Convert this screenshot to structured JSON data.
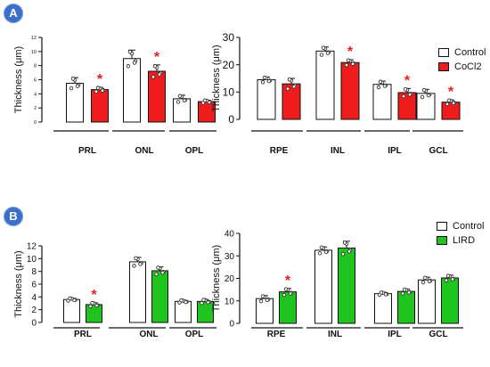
{
  "panels": [
    {
      "label": "A"
    },
    {
      "label": "B"
    }
  ],
  "colors": {
    "control": "#ffffff",
    "cocl2": "#ee1c1c",
    "lird": "#1fc41f",
    "star": "#ee1c1c",
    "axis": "#111111",
    "badge": "#3b6fc9"
  },
  "legends": [
    {
      "items": [
        {
          "name": "Control",
          "color": "#ffffff"
        },
        {
          "name": "CoCl2",
          "color": "#ee1c1c"
        }
      ]
    },
    {
      "items": [
        {
          "name": "Control",
          "color": "#ffffff"
        },
        {
          "name": "LIRD",
          "color": "#1fc41f"
        }
      ]
    }
  ],
  "chart_data": [
    {
      "type": "bar",
      "panel": "A",
      "ylabel": "Thickness (μm)",
      "ylim": [
        0,
        12
      ],
      "yticks": [
        "0",
        "2",
        "4",
        "6",
        "8",
        "10",
        "12"
      ],
      "categories": [
        "PRL",
        "ONL",
        "OPL"
      ],
      "series": [
        {
          "name": "Control",
          "values": [
            5.5,
            9.0,
            3.3
          ],
          "errors": [
            0.8,
            1.2,
            0.5
          ]
        },
        {
          "name": "CoCl2",
          "values": [
            4.6,
            7.2,
            2.9
          ],
          "errors": [
            0.3,
            0.9,
            0.2
          ]
        }
      ],
      "significant": [
        true,
        true,
        false
      ]
    },
    {
      "type": "bar",
      "panel": "A",
      "ylabel": "Thickness (μm)",
      "ylim": [
        0,
        30
      ],
      "yticks": [
        "0",
        "10",
        "20",
        "30"
      ],
      "categories": [
        "RPE",
        "INL",
        "IPL",
        "GCL"
      ],
      "series": [
        {
          "name": "Control",
          "values": [
            14.5,
            25.0,
            12.8,
            9.5
          ],
          "errors": [
            1.0,
            1.5,
            1.2,
            1.5
          ]
        },
        {
          "name": "CoCl2",
          "values": [
            13.0,
            20.8,
            9.8,
            6.3
          ],
          "errors": [
            2.0,
            1.0,
            1.5,
            0.8
          ]
        }
      ],
      "significant": [
        false,
        true,
        true,
        true
      ]
    },
    {
      "type": "bar",
      "panel": "B",
      "ylabel": "Thickness (μm)",
      "ylim": [
        0,
        12
      ],
      "yticks": [
        "0",
        "2",
        "4",
        "6",
        "8",
        "10",
        "12"
      ],
      "categories": [
        "PRL",
        "ONL",
        "OPL"
      ],
      "series": [
        {
          "name": "Control",
          "values": [
            3.6,
            9.5,
            3.3
          ],
          "errors": [
            0.2,
            0.7,
            0.2
          ]
        },
        {
          "name": "LIRD",
          "values": [
            2.8,
            8.1,
            3.3
          ],
          "errors": [
            0.3,
            0.6,
            0.3
          ]
        }
      ],
      "significant": [
        true,
        false,
        false
      ]
    },
    {
      "type": "bar",
      "panel": "B",
      "ylabel": "Thickness (μm)",
      "ylim": [
        0,
        40
      ],
      "yticks": [
        "0",
        "10",
        "20",
        "30",
        "40"
      ],
      "categories": [
        "RPE",
        "INL",
        "IPL",
        "GCL"
      ],
      "series": [
        {
          "name": "Control",
          "values": [
            11.0,
            32.5,
            13.2,
            19.3
          ],
          "errors": [
            1.3,
            1.5,
            0.6,
            1.2
          ]
        },
        {
          "name": "LIRD",
          "values": [
            14.0,
            33.5,
            14.2,
            20.2
          ],
          "errors": [
            1.5,
            3.0,
            1.0,
            1.2
          ]
        }
      ],
      "significant": [
        true,
        false,
        false,
        false
      ]
    }
  ]
}
